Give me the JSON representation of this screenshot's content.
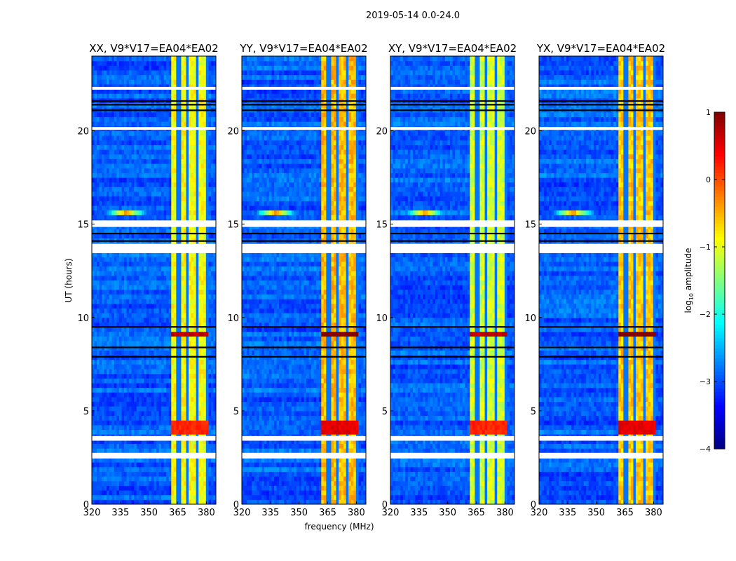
{
  "chart_data": {
    "type": "heatmap",
    "suptitle": "2019-05-14 0.0-24.0",
    "xlabel": "frequency (MHz)",
    "ylabel": "UT (hours)",
    "xlim": [
      320,
      385
    ],
    "ylim": [
      0,
      24
    ],
    "xticks": [
      320,
      335,
      350,
      365,
      380
    ],
    "yticks": [
      0,
      5,
      10,
      15,
      20
    ],
    "panels": [
      {
        "title": "XX, V9*V17=EA04*EA02",
        "band_level": -0.9
      },
      {
        "title": "YY, V9*V17=EA04*EA02",
        "band_level": -0.55
      },
      {
        "title": "XY, V9*V17=EA04*EA02",
        "band_level": -1.1
      },
      {
        "title": "YX, V9*V17=EA04*EA02",
        "band_level": -0.6
      }
    ],
    "background_level": -3.3,
    "rfi_band_mhz": [
      361,
      381
    ],
    "band_notches_mhz": [
      365.5,
      370.5,
      375.5,
      380
    ],
    "strong_rows": [
      {
        "hours": [
          15.4,
          15.8
        ],
        "peak_mhz": 338,
        "level": 0.8
      },
      {
        "hours": [
          8.9,
          9.3
        ],
        "band_level": 0.6
      },
      {
        "hours": [
          3.8,
          4.6
        ],
        "band_level": 0.1
      }
    ],
    "flagged_hours": [
      [
        2.45,
        2.75
      ],
      [
        3.4,
        3.65
      ],
      [
        13.45,
        13.95
      ],
      [
        14.85,
        15.2
      ],
      [
        22.2,
        22.35
      ],
      [
        20.05,
        20.2
      ]
    ],
    "dark_rows_hours": [
      7.9,
      8.4,
      9.5,
      14.1,
      14.5,
      21.1,
      21.4,
      21.6
    ],
    "colorbar": {
      "label": "log10 amplitude",
      "label_main": "log",
      "label_sub": "10",
      "label_rest": " amplitude",
      "range": [
        -4,
        1
      ],
      "ticks": [
        "1",
        "0",
        "−1",
        "−2",
        "−3",
        "−4"
      ],
      "tick_values": [
        1,
        0,
        -1,
        -2,
        -3,
        -4
      ],
      "colormap": "jet"
    }
  }
}
